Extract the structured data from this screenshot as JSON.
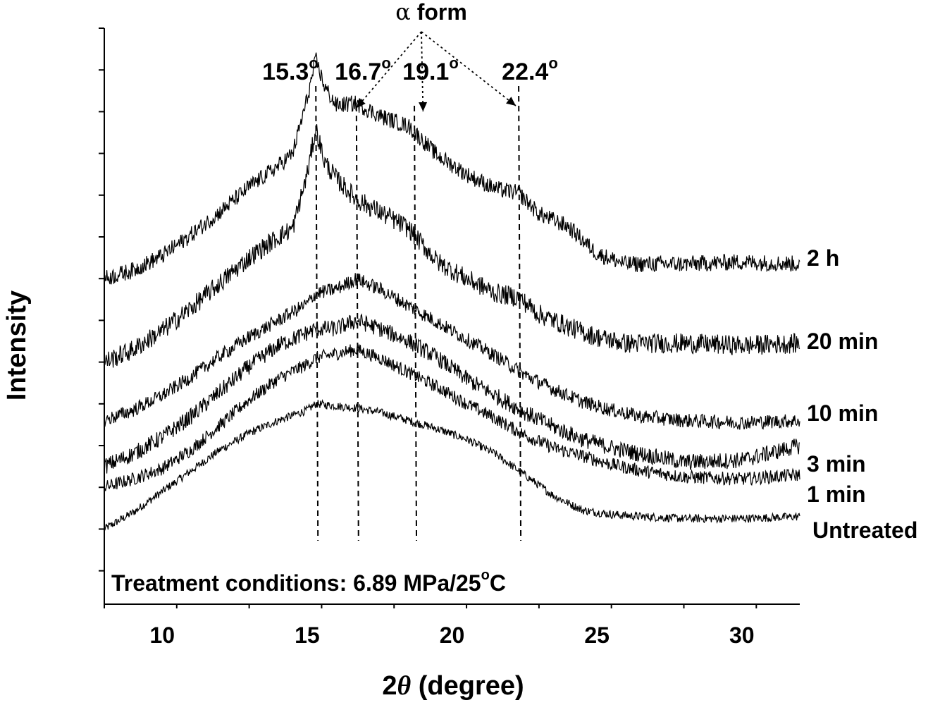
{
  "chart_data": {
    "type": "line",
    "title": "",
    "xlabel_main": "2",
    "xlabel_theta": "θ",
    "xlabel_unit": " (degree)",
    "ylabel": "Intensity",
    "xlim": [
      8,
      32
    ],
    "ylim": [
      -1.8,
      12.0
    ],
    "x_ticks": [
      10,
      15,
      20,
      25,
      30
    ],
    "y_ticks_shown_as_text": false,
    "grid": false,
    "annotation": {
      "text": "Treatment conditions: 6.89 MPa/25",
      "degree": "o",
      "suffix": "C"
    },
    "alpha_label": {
      "alpha": "α",
      "text": " form"
    },
    "peaks": [
      {
        "x": 15.3,
        "label": "15.3",
        "degree": "o"
      },
      {
        "x": 16.7,
        "label": "16.7",
        "degree": "o"
      },
      {
        "x": 19.1,
        "label": "19.1",
        "degree": "o"
      },
      {
        "x": 22.4,
        "label": "22.4",
        "degree": "o"
      }
    ],
    "peak_guide_x": [
      15.3,
      16.7,
      18.7,
      22.3
    ],
    "alpha_arrow_targets_x": [
      16.7,
      19.0,
      22.2
    ],
    "series": [
      {
        "name": "Untreated",
        "x": [
          8,
          9,
          10,
          11,
          12,
          13,
          14,
          15,
          15.3,
          16,
          16.7,
          17.5,
          18.5,
          19.5,
          20.5,
          21.5,
          22.5,
          23.5,
          24.5,
          25.5,
          26.5,
          28,
          30,
          32
        ],
        "y": [
          0.0,
          0.4,
          0.9,
          1.4,
          1.9,
          2.3,
          2.6,
          2.85,
          3.0,
          2.95,
          2.9,
          2.8,
          2.6,
          2.4,
          2.15,
          1.8,
          1.3,
          0.8,
          0.45,
          0.35,
          0.3,
          0.25,
          0.25,
          0.3
        ]
      },
      {
        "name": "1 min",
        "x": [
          8,
          9,
          10,
          11,
          12,
          13,
          14,
          15,
          15.3,
          16,
          16.7,
          17.5,
          18.5,
          19.5,
          20.5,
          21.5,
          22.5,
          23.5,
          24.5,
          25.5,
          26.5,
          28,
          30,
          32
        ],
        "y": [
          1.0,
          1.2,
          1.45,
          1.9,
          2.5,
          3.1,
          3.6,
          3.95,
          4.1,
          4.2,
          4.3,
          4.1,
          3.75,
          3.4,
          3.0,
          2.65,
          2.25,
          1.95,
          1.75,
          1.55,
          1.4,
          1.25,
          1.2,
          1.3
        ]
      },
      {
        "name": "3 min",
        "x": [
          8,
          9,
          10,
          11,
          12,
          13,
          14,
          15,
          15.3,
          16,
          16.7,
          17.5,
          18.5,
          19.5,
          20.5,
          21.5,
          22.5,
          23.5,
          24.5,
          25.5,
          26.5,
          28,
          30,
          32
        ],
        "y": [
          1.5,
          1.8,
          2.2,
          2.7,
          3.3,
          3.9,
          4.4,
          4.7,
          4.8,
          4.8,
          5.0,
          4.8,
          4.5,
          4.1,
          3.6,
          3.2,
          2.8,
          2.45,
          2.15,
          1.95,
          1.8,
          1.6,
          1.65,
          2.0
        ]
      },
      {
        "name": "10 min",
        "x": [
          8,
          9,
          10,
          11,
          12,
          13,
          14,
          15,
          15.3,
          16,
          16.7,
          17.5,
          18.5,
          19.5,
          20.5,
          21.5,
          22.5,
          23.5,
          24.5,
          25.5,
          26.5,
          28,
          30,
          32
        ],
        "y": [
          2.6,
          2.85,
          3.2,
          3.65,
          4.15,
          4.6,
          5.0,
          5.4,
          5.65,
          5.75,
          6.0,
          5.75,
          5.35,
          4.95,
          4.55,
          4.15,
          3.7,
          3.35,
          3.05,
          2.85,
          2.7,
          2.6,
          2.55,
          2.6
        ]
      },
      {
        "name": "20 min",
        "x": [
          8,
          9,
          10,
          11,
          12,
          13,
          14,
          14.5,
          15,
          15.3,
          15.6,
          16,
          16.7,
          17.5,
          18.5,
          19.5,
          20.5,
          21.5,
          22.3,
          23,
          24,
          25,
          26,
          28,
          30,
          32
        ],
        "y": [
          4.0,
          4.3,
          4.75,
          5.3,
          5.9,
          6.5,
          7.0,
          7.2,
          8.5,
          9.6,
          8.8,
          8.4,
          7.9,
          7.6,
          7.2,
          6.4,
          6.0,
          5.65,
          5.55,
          5.15,
          4.85,
          4.6,
          4.45,
          4.45,
          4.4,
          4.45
        ]
      },
      {
        "name": "2 h",
        "x": [
          8,
          9,
          10,
          11,
          12,
          13,
          14,
          14.5,
          15,
          15.3,
          15.6,
          16,
          16.7,
          17.5,
          18.5,
          19.5,
          20.5,
          21.5,
          22.3,
          23,
          24,
          25,
          26,
          28,
          30,
          32
        ],
        "y": [
          6.0,
          6.2,
          6.55,
          7.05,
          7.6,
          8.2,
          8.7,
          9.0,
          10.3,
          11.25,
          10.6,
          10.15,
          10.2,
          9.9,
          9.65,
          8.95,
          8.5,
          8.15,
          8.05,
          7.55,
          7.25,
          6.6,
          6.35,
          6.35,
          6.4,
          6.35
        ]
      }
    ]
  }
}
